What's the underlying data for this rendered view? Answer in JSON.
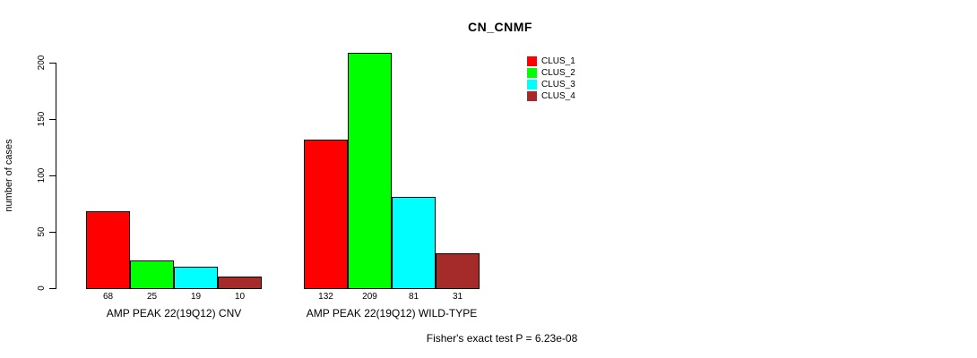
{
  "page": {
    "background": "#ffffff"
  },
  "chart_data": {
    "type": "bar",
    "title": "CN_CNMF",
    "xlabel": "",
    "ylabel": "number of cases",
    "ylim": [
      0,
      200
    ],
    "yticks": [
      0,
      50,
      100,
      150,
      200
    ],
    "grid": false,
    "legend_position": "top-right",
    "bar_border_color": "#000000",
    "categories": [
      "AMP PEAK 22(19Q12) CNV",
      "AMP PEAK 22(19Q12) WILD-TYPE"
    ],
    "series": [
      {
        "name": "CLUS_1",
        "color": "#ff0000",
        "values": [
          68,
          132
        ]
      },
      {
        "name": "CLUS_2",
        "color": "#00ff00",
        "values": [
          25,
          209
        ]
      },
      {
        "name": "CLUS_3",
        "color": "#00ffff",
        "values": [
          19,
          81
        ]
      },
      {
        "name": "CLUS_4",
        "color": "#a52a2a",
        "values": [
          10,
          31
        ]
      }
    ],
    "value_labels": [
      [
        "68",
        "25",
        "19",
        "10"
      ],
      [
        "132",
        "209",
        "81",
        "31"
      ]
    ],
    "annotation": "Fisher's exact test P = 6.23e-08"
  }
}
